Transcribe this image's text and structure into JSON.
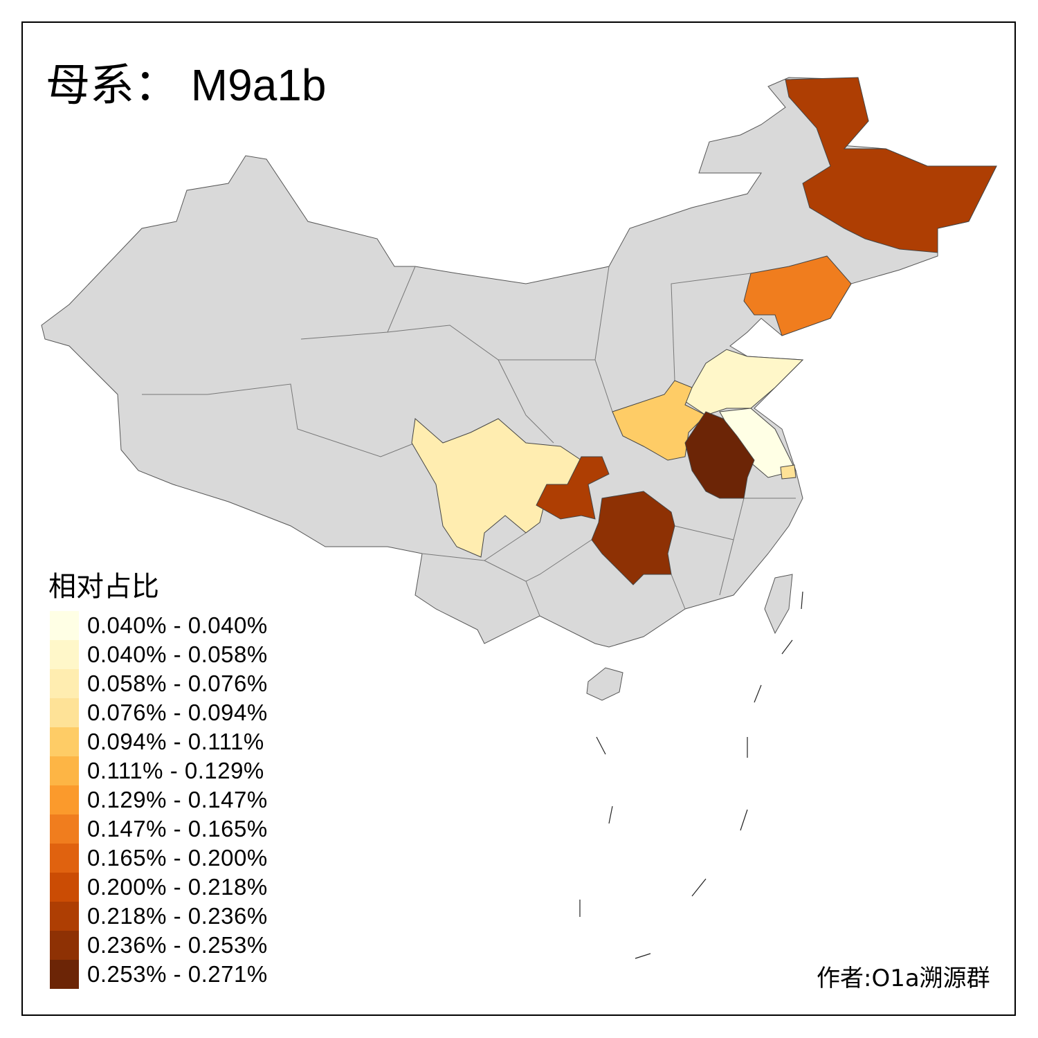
{
  "title": {
    "prefix": "母系：",
    "haplogroup": "M9a1b"
  },
  "legend": {
    "title": "相对占比",
    "bins": [
      {
        "label": "0.040% - 0.040%",
        "color": "#FFFFE5"
      },
      {
        "label": "0.040% - 0.058%",
        "color": "#FFF7C9"
      },
      {
        "label": "0.058% - 0.076%",
        "color": "#FFEDB0"
      },
      {
        "label": "0.076% - 0.094%",
        "color": "#FEE297"
      },
      {
        "label": "0.094% - 0.111%",
        "color": "#FECC66"
      },
      {
        "label": "0.111% - 0.129%",
        "color": "#FDB545"
      },
      {
        "label": "0.129% - 0.147%",
        "color": "#FB9A2C"
      },
      {
        "label": "0.147% - 0.165%",
        "color": "#F07D1E"
      },
      {
        "label": "0.165% - 0.200%",
        "color": "#E0620F"
      },
      {
        "label": "0.200% - 0.218%",
        "color": "#CB4C04"
      },
      {
        "label": "0.218% - 0.236%",
        "color": "#AE3E03"
      },
      {
        "label": "0.236% - 0.253%",
        "color": "#8E3104"
      },
      {
        "label": "0.253% - 0.271%",
        "color": "#6C2506"
      }
    ]
  },
  "regions": {
    "no_data_color": "#D9D9D9",
    "heilongjiang": {
      "bin": 10
    },
    "liaoning": {
      "bin": 7
    },
    "shandong": {
      "bin": 1
    },
    "jiangsu": {
      "bin": 0
    },
    "shanghai": {
      "bin": 3
    },
    "henan": {
      "bin": 4
    },
    "anhui": {
      "bin": 12
    },
    "sichuan": {
      "bin": 2
    },
    "chongqing": {
      "bin": 10
    },
    "hunan": {
      "bin": 11
    }
  },
  "author": "作者:O1a溯源群"
}
